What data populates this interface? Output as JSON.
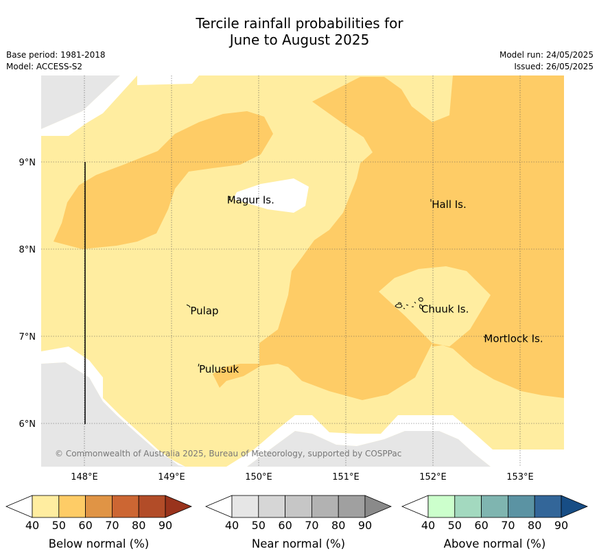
{
  "header": {
    "title_line1": "Tercile rainfall probabilities for",
    "title_line2": "June to August 2025",
    "base_period": "Base period: 1981-2018",
    "model": "Model: ACCESS-S2",
    "model_run": "Model run: 24/05/2025",
    "issued": "Issued: 26/05/2025"
  },
  "map": {
    "extent": {
      "lon": [
        147.5,
        153.5
      ],
      "lat": [
        5.5,
        10.0
      ]
    },
    "lat_ticks": [
      {
        "value": 6,
        "label": "6°N"
      },
      {
        "value": 7,
        "label": "7°N"
      },
      {
        "value": 8,
        "label": "8°N"
      },
      {
        "value": 9,
        "label": "9°N"
      }
    ],
    "lon_ticks": [
      {
        "value": 148,
        "label": "148°E"
      },
      {
        "value": 149,
        "label": "149°E"
      },
      {
        "value": 150,
        "label": "150°E"
      },
      {
        "value": 151,
        "label": "151°E"
      },
      {
        "value": 152,
        "label": "152°E"
      },
      {
        "value": 153,
        "label": "153°E"
      }
    ],
    "places": [
      {
        "name": "Magur Is.",
        "lon": 149.62,
        "lat": 8.57
      },
      {
        "name": "Hall Is.",
        "lon": 151.97,
        "lat": 8.52
      },
      {
        "name": "Pulap",
        "lon": 149.2,
        "lat": 7.3
      },
      {
        "name": "Chuuk Is.",
        "lon": 151.85,
        "lat": 7.32
      },
      {
        "name": "Mortlock Is.",
        "lon": 152.57,
        "lat": 6.98
      },
      {
        "name": "Pulusuk",
        "lon": 149.3,
        "lat": 6.63
      }
    ],
    "copyright": "© Commonwealth of Australia 2025, Bureau of Meteorology, supported by COSPPac"
  },
  "colorbars": [
    {
      "label": "Below normal (%)",
      "ticks": [
        "40",
        "50",
        "60",
        "70",
        "80",
        "90"
      ],
      "colors": [
        "#ffeda0",
        "#fecc66",
        "#e09445",
        "#cc6633",
        "#b24c28",
        "#99331c"
      ]
    },
    {
      "label": "Near normal (%)",
      "ticks": [
        "40",
        "50",
        "60",
        "70",
        "80",
        "90"
      ],
      "colors": [
        "#e6e6e6",
        "#d6d6d6",
        "#c6c6c6",
        "#b2b2b2",
        "#a0a0a0",
        "#8a8a8a"
      ]
    },
    {
      "label": "Above normal (%)",
      "ticks": [
        "40",
        "50",
        "60",
        "70",
        "80",
        "90"
      ],
      "colors": [
        "#ccffcc",
        "#a3d9bf",
        "#7fb5b0",
        "#5b93a3",
        "#336699",
        "#174d85"
      ]
    }
  ],
  "colors": {
    "below_40_50": "#ffeda0",
    "below_50_60": "#fecc66",
    "near_normal_40_50": "#e6e6e6",
    "land_outline": "#000000"
  }
}
